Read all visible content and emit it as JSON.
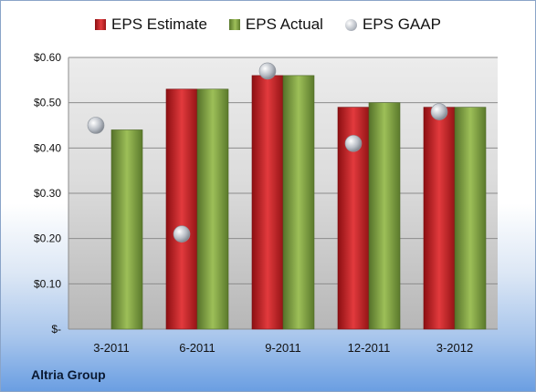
{
  "company": "Altria Group",
  "colors": {
    "estimate": "#d42a2d",
    "actual": "#8fb04a",
    "gaap": "#c0c5cc"
  },
  "chart_data": {
    "type": "bar",
    "title": "",
    "xlabel": "",
    "ylabel": "",
    "legend_position": "top",
    "grid": true,
    "ylim": [
      0,
      0.6
    ],
    "y_ticks": [
      0,
      0.1,
      0.2,
      0.3,
      0.4,
      0.5,
      0.6
    ],
    "y_tick_labels": [
      "$-",
      "$0.10",
      "$0.20",
      "$0.30",
      "$0.40",
      "$0.50",
      "$0.60"
    ],
    "categories": [
      "3-2011",
      "6-2011",
      "9-2011",
      "12-2011",
      "3-2012"
    ],
    "series": [
      {
        "name": "EPS Estimate",
        "type": "bar",
        "values": [
          null,
          0.53,
          0.56,
          0.49,
          0.49
        ]
      },
      {
        "name": "EPS Actual",
        "type": "bar",
        "values": [
          0.44,
          0.53,
          0.56,
          0.5,
          0.49
        ]
      },
      {
        "name": "EPS GAAP",
        "type": "scatter",
        "values": [
          0.45,
          0.21,
          0.57,
          0.41,
          0.48
        ]
      }
    ]
  }
}
